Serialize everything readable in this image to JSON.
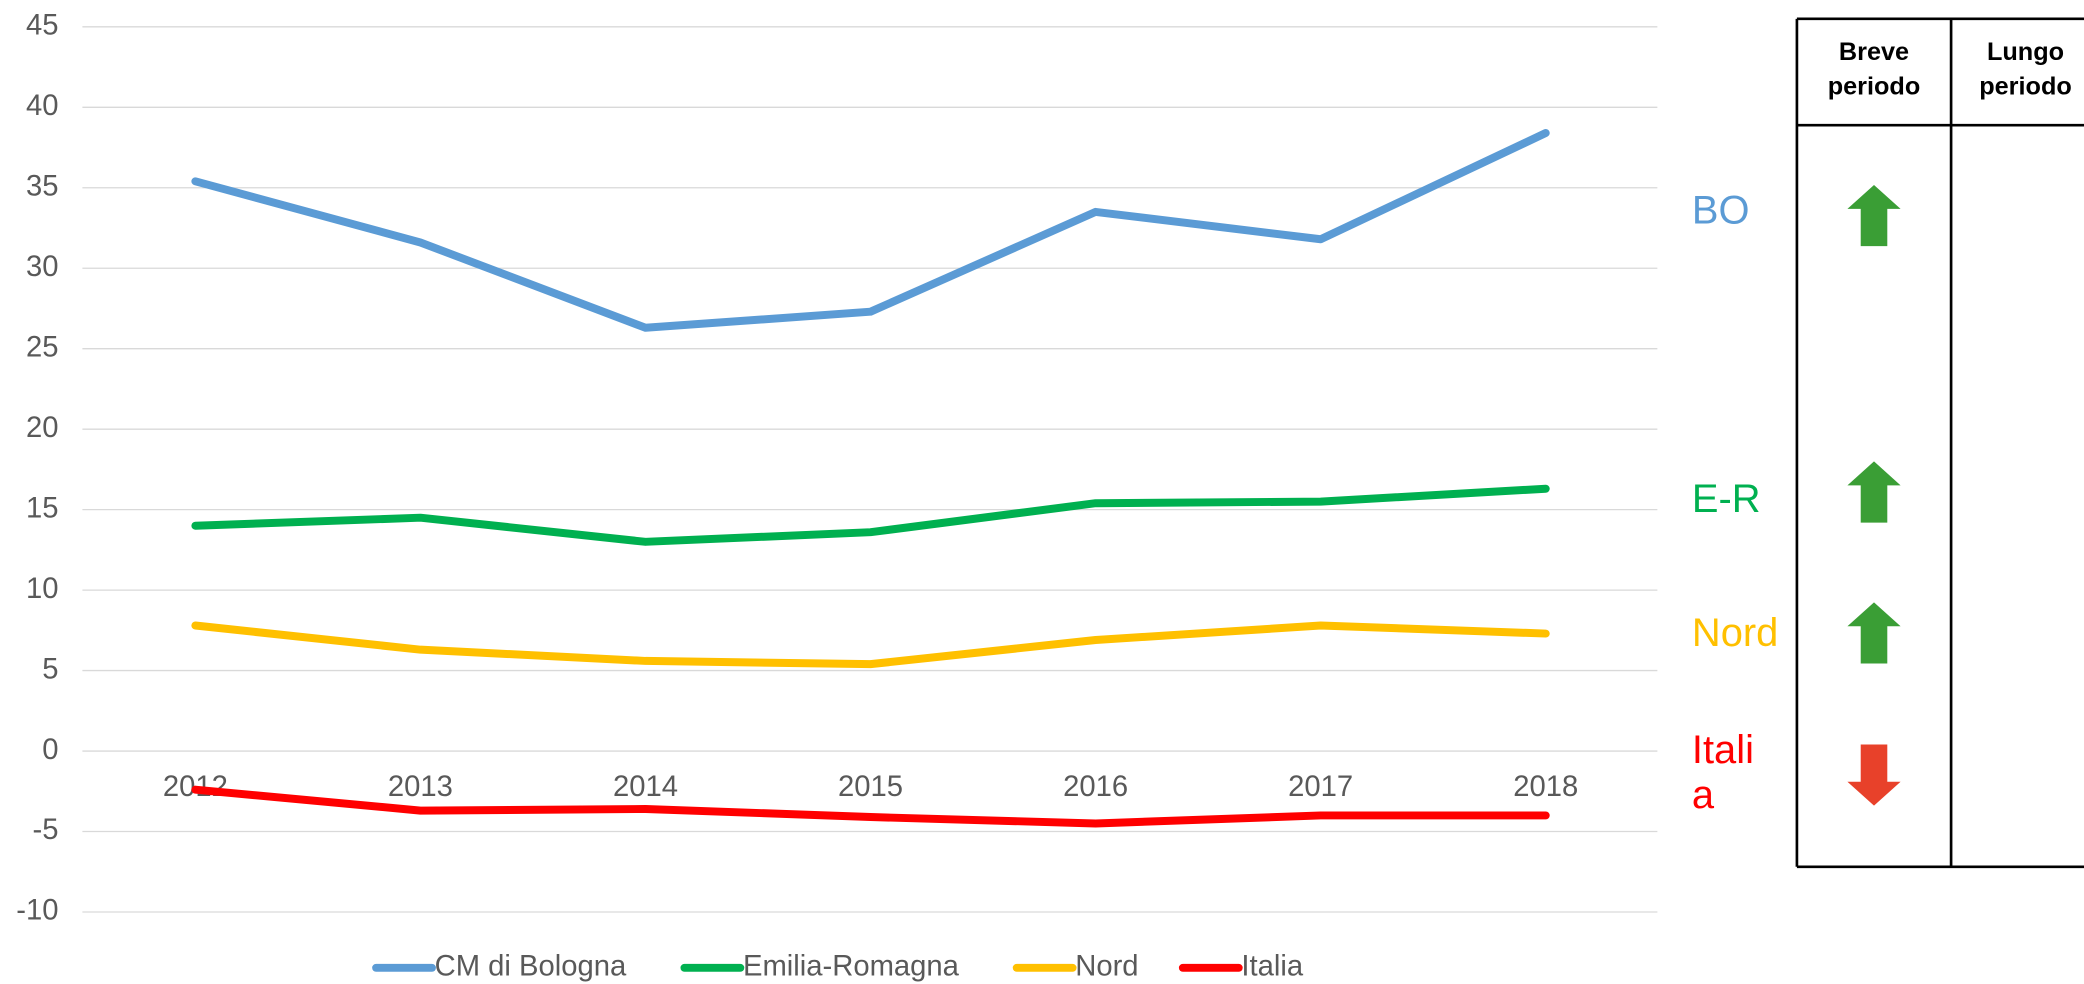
{
  "chart_data": {
    "type": "line",
    "categories": [
      "2012",
      "2013",
      "2014",
      "2015",
      "2016",
      "2017",
      "2018"
    ],
    "series": [
      {
        "name": "CM di Bologna",
        "color": "#5b9bd5",
        "values": [
          35.4,
          31.6,
          26.3,
          27.3,
          33.5,
          31.8,
          38.4
        ]
      },
      {
        "name": "Emilia-Romagna",
        "color": "#00b050",
        "values": [
          14.0,
          14.5,
          13.0,
          13.6,
          15.4,
          15.5,
          16.3
        ]
      },
      {
        "name": "Nord",
        "color": "#ffc000",
        "values": [
          7.8,
          6.3,
          5.6,
          5.4,
          6.9,
          7.8,
          7.3
        ]
      },
      {
        "name": "Italia",
        "color": "#ff0000",
        "values": [
          -2.4,
          -3.7,
          -3.6,
          -4.1,
          -4.5,
          -4.0,
          -4.0
        ]
      }
    ],
    "ylim": [
      -10,
      45
    ],
    "yticks": [
      -10,
      -5,
      0,
      5,
      10,
      15,
      20,
      25,
      30,
      35,
      40,
      45
    ],
    "grid": true,
    "legend": "bottom"
  },
  "table": {
    "headers": [
      [
        "Breve",
        "periodo"
      ],
      [
        "Lungo",
        "periodo"
      ]
    ],
    "rows": [
      {
        "label": [
          "BO"
        ],
        "breve": "up"
      },
      {
        "label": [
          "E-R"
        ],
        "breve": "up"
      },
      {
        "label": [
          "Nord"
        ],
        "breve": "up"
      },
      {
        "label": [
          "Itali",
          "a"
        ],
        "breve": "down"
      }
    ],
    "up_color": "#3a9e35",
    "down_color": "#e8412a"
  }
}
